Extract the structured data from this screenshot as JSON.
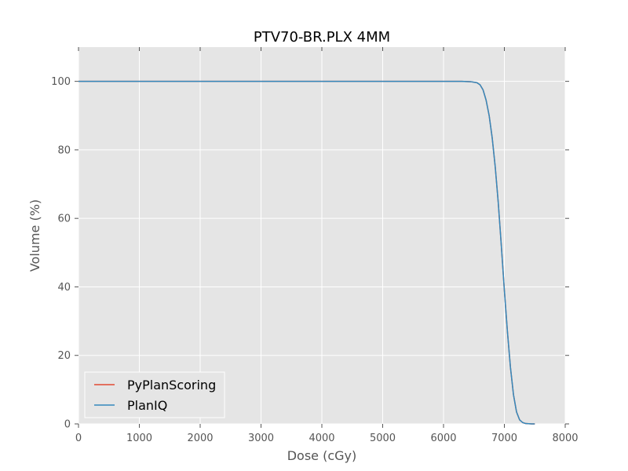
{
  "chart_data": {
    "type": "line",
    "title": "PTV70-BR.PLX 4MM",
    "xlabel": "Dose (cGy)",
    "ylabel": "Volume (%)",
    "xlim": [
      0,
      8000
    ],
    "ylim": [
      0,
      110
    ],
    "xticks": [
      0,
      1000,
      2000,
      3000,
      4000,
      5000,
      6000,
      7000,
      8000
    ],
    "yticks": [
      0,
      20,
      40,
      60,
      80,
      100
    ],
    "grid": true,
    "legend_position": "lower-left",
    "background": "#e5e5e5",
    "series": [
      {
        "name": "PyPlanScoring",
        "color": "#e24a33",
        "x": [
          0,
          1000,
          2000,
          3000,
          4000,
          5000,
          6000,
          6300,
          6450,
          6550,
          6600,
          6650,
          6700,
          6750,
          6800,
          6850,
          6900,
          6950,
          7000,
          7050,
          7100,
          7150,
          7200,
          7250,
          7300,
          7350,
          7400,
          7450,
          7500
        ],
        "y": [
          100,
          100,
          100,
          100,
          100,
          100,
          100,
          100,
          99.9,
          99.6,
          99.0,
          97.5,
          94.5,
          90.0,
          83.5,
          75.0,
          64.5,
          52.0,
          39.0,
          27.0,
          16.5,
          8.5,
          3.5,
          1.2,
          0.4,
          0.1,
          0.05,
          0.0,
          0.0
        ]
      },
      {
        "name": "PlanIQ",
        "color": "#348abd",
        "x": [
          0,
          1000,
          2000,
          3000,
          4000,
          5000,
          6000,
          6300,
          6450,
          6550,
          6600,
          6650,
          6700,
          6750,
          6800,
          6850,
          6900,
          6950,
          7000,
          7050,
          7100,
          7150,
          7200,
          7250,
          7300,
          7350,
          7400,
          7450,
          7500
        ],
        "y": [
          100,
          100,
          100,
          100,
          100,
          100,
          100,
          100,
          99.9,
          99.6,
          99.0,
          97.5,
          94.5,
          90.0,
          83.5,
          75.0,
          64.5,
          52.0,
          39.0,
          27.0,
          16.5,
          8.5,
          3.5,
          1.2,
          0.4,
          0.1,
          0.05,
          0.0,
          0.0
        ]
      }
    ]
  }
}
